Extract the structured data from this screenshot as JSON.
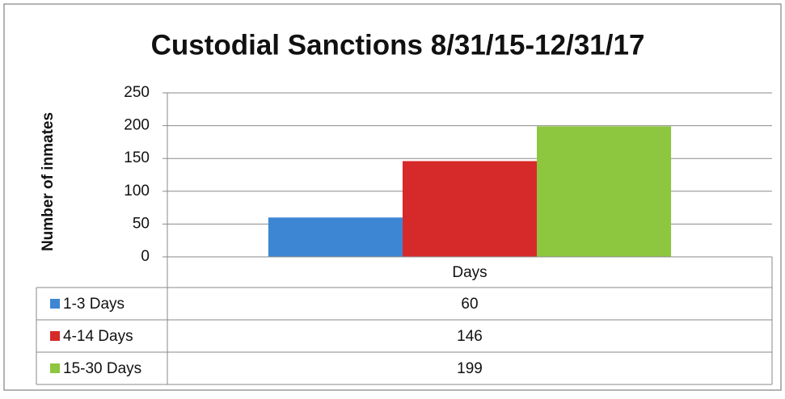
{
  "chart_data": {
    "type": "bar",
    "title": "Custodial Sanctions 8/31/15-12/31/17",
    "y_label": "Number of inmates",
    "categories": [
      "Days"
    ],
    "series": [
      {
        "name": "1-3 Days",
        "color": "#3d86d4",
        "values": [
          60
        ]
      },
      {
        "name": "4-14 Days",
        "color": "#d62a2a",
        "values": [
          146
        ]
      },
      {
        "name": "15-30 Days",
        "color": "#8dc63f",
        "values": [
          199
        ]
      }
    ],
    "ylim": [
      0,
      250
    ],
    "yticks": [
      0,
      50,
      100,
      150,
      200,
      250
    ],
    "grid": true,
    "data_table": true
  }
}
